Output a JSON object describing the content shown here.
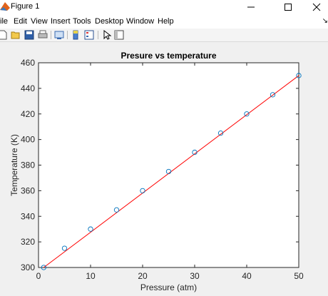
{
  "window": {
    "title": "Figure 1"
  },
  "menu": {
    "items": [
      "ile",
      "Edit",
      "View",
      "Insert",
      "Tools",
      "Desktop",
      "Window",
      "Help"
    ]
  },
  "toolbar": {
    "icons": [
      "new-figure-icon",
      "open-file-icon",
      "save-icon",
      "print-icon",
      "link-plot-icon",
      "colorbar-icon",
      "legend-icon",
      "select-pointer-icon",
      "property-inspector-icon"
    ]
  },
  "colors": {
    "line": "#ff0000",
    "markers": "#0072bd",
    "axes_bg": "#ffffff",
    "figure_bg": "#f0f0f0"
  },
  "chart_data": {
    "type": "scatter",
    "title": "Presure vs temperature",
    "xlabel": "Pressure (atm)",
    "ylabel": "Temperature (K)",
    "xlim": [
      0,
      50
    ],
    "ylim": [
      300,
      460
    ],
    "xticks": [
      0,
      10,
      20,
      30,
      40,
      50
    ],
    "yticks": [
      300,
      320,
      340,
      360,
      380,
      400,
      420,
      440,
      460
    ],
    "grid": false,
    "series": [
      {
        "marker": "circle",
        "x": [
          1,
          5,
          10,
          15,
          20,
          25,
          30,
          35,
          40,
          45,
          50
        ],
        "y": [
          300,
          315,
          330,
          345,
          360,
          375,
          390,
          405,
          420,
          435,
          450
        ]
      }
    ],
    "fit_line": {
      "x": [
        1,
        50
      ],
      "y": [
        300,
        450
      ]
    }
  }
}
